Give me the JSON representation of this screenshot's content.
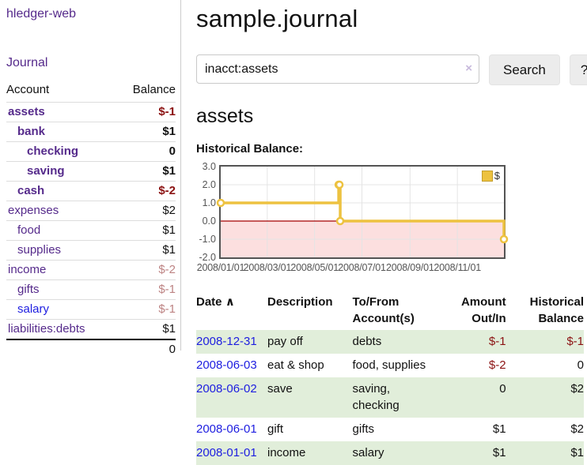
{
  "colors": {
    "purple": "#552a8b",
    "blue": "#1d1de0",
    "negative": "#8b1212",
    "soft_negative": "#bd8383",
    "row_green": "#e1eeda",
    "gold": "#edc240",
    "gold_border": "#c49e2c",
    "pink": "#fcdfdf",
    "zero_line": "#a40000",
    "grid_line": "#e4e4e4",
    "plot_border": "#545454"
  },
  "app": {
    "title": "hledger-web",
    "nav_journal": "Journal"
  },
  "sidebar": {
    "headers": [
      "Account",
      "Balance"
    ],
    "rows": [
      {
        "account": "assets",
        "balance": "$-1",
        "indent": 0,
        "strong": true,
        "balance_tone": "negative",
        "link_color": "purple"
      },
      {
        "account": "bank",
        "balance": "$1",
        "indent": 1,
        "strong": true,
        "balance_tone": "normal",
        "link_color": "purple"
      },
      {
        "account": "checking",
        "balance": "0",
        "indent": 2,
        "strong": true,
        "balance_tone": "normal",
        "link_color": "purple"
      },
      {
        "account": "saving",
        "balance": "$1",
        "indent": 2,
        "strong": true,
        "balance_tone": "normal",
        "link_color": "purple"
      },
      {
        "account": "cash",
        "balance": "$-2",
        "indent": 1,
        "strong": true,
        "balance_tone": "negative",
        "link_color": "purple"
      },
      {
        "account": "expenses",
        "balance": "$2",
        "indent": 0,
        "strong": false,
        "balance_tone": "normal",
        "link_color": "purple"
      },
      {
        "account": "food",
        "balance": "$1",
        "indent": 1,
        "strong": false,
        "balance_tone": "normal",
        "link_color": "purple"
      },
      {
        "account": "supplies",
        "balance": "$1",
        "indent": 1,
        "strong": false,
        "balance_tone": "normal",
        "link_color": "purple"
      },
      {
        "account": "income",
        "balance": "$-2",
        "indent": 0,
        "strong": false,
        "balance_tone": "soft-negative",
        "link_color": "purple"
      },
      {
        "account": "gifts",
        "balance": "$-1",
        "indent": 1,
        "strong": false,
        "balance_tone": "soft-negative",
        "link_color": "purple"
      },
      {
        "account": "salary",
        "balance": "$-1",
        "indent": 1,
        "strong": false,
        "balance_tone": "soft-negative",
        "link_color": "blue"
      },
      {
        "account": "liabilities:debts",
        "balance": "$1",
        "indent": 0,
        "strong": false,
        "balance_tone": "normal",
        "link_color": "purple"
      }
    ],
    "total": "0"
  },
  "main": {
    "title": "sample.journal",
    "search": {
      "value": "inacct:assets",
      "clear_icon": "×",
      "button_label": "Search",
      "help_label": "?"
    },
    "heading": "assets"
  },
  "chart_data": {
    "type": "line",
    "subtype": "step",
    "title": "Historical Balance:",
    "legend": {
      "label": "$",
      "position": "top-right"
    },
    "x": [
      "2008-01-01",
      "2008-06-01",
      "2008-06-02",
      "2008-06-03",
      "2008-12-31"
    ],
    "series": [
      {
        "name": "$",
        "values": [
          1,
          2,
          2,
          0,
          -1
        ]
      }
    ],
    "xrange": [
      "2008-01-01",
      "2008-12-31"
    ],
    "ylim": [
      -2,
      3
    ],
    "yticks": [
      {
        "v": 3,
        "label": "3.0"
      },
      {
        "v": 2,
        "label": "2.0"
      },
      {
        "v": 1,
        "label": "1.0"
      },
      {
        "v": 0,
        "label": "0.0"
      },
      {
        "v": -1,
        "label": "-1.0"
      },
      {
        "v": -2,
        "label": "-2.0"
      }
    ],
    "xticks": [
      {
        "t": "2008-01-01",
        "label": "2008/01/01"
      },
      {
        "t": "2008-03-01",
        "label": "2008/03/01"
      },
      {
        "t": "2008-05-01",
        "label": "2008/05/01"
      },
      {
        "t": "2008-07-01",
        "label": "2008/07/01"
      },
      {
        "t": "2008-09-01",
        "label": "2008/09/01"
      },
      {
        "t": "2008-11-01",
        "label": "2008/11/01"
      }
    ],
    "grid": true,
    "negative_region_shaded": true
  },
  "transactions": {
    "headers": [
      {
        "label": "Date",
        "sort_arrow": "∧"
      },
      {
        "label": "Description"
      },
      {
        "label": "To/From Account(s)"
      },
      {
        "label": "Amount Out/In"
      },
      {
        "label": "Historical Balance"
      }
    ],
    "rows": [
      {
        "date": "2008-12-31",
        "description": "pay off",
        "accounts": "debts",
        "amount": "$-1",
        "balance": "$-1"
      },
      {
        "date": "2008-06-03",
        "description": "eat & shop",
        "accounts": "food, supplies",
        "amount": "$-2",
        "balance": "0"
      },
      {
        "date": "2008-06-02",
        "description": "save",
        "accounts": "saving, checking",
        "amount": "0",
        "balance": "$2"
      },
      {
        "date": "2008-06-01",
        "description": "gift",
        "accounts": "gifts",
        "amount": "$1",
        "balance": "$2"
      },
      {
        "date": "2008-01-01",
        "description": "income",
        "accounts": "salary",
        "amount": "$1",
        "balance": "$1"
      }
    ]
  }
}
